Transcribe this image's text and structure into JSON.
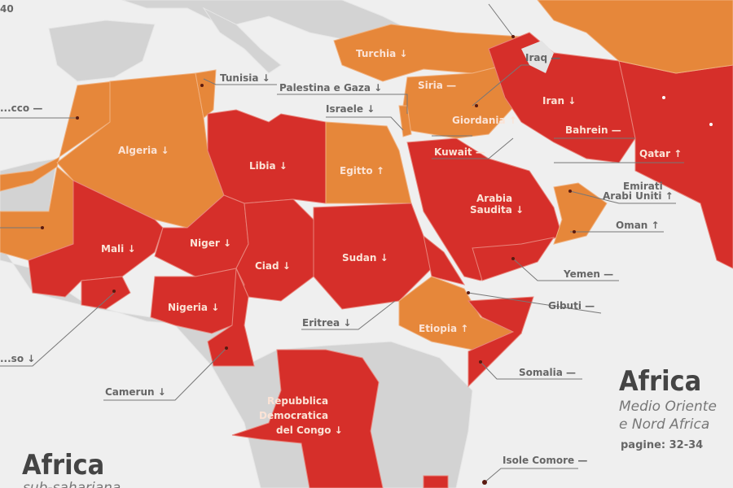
{
  "colors": {
    "worsening_region": "#d62f2a",
    "other_region": "#e6873a",
    "not_covered": "#d3d3d3",
    "sea": "#efefef"
  },
  "top_left_fragment": "40",
  "countries": {
    "marocco": {
      "label": "...cco",
      "trend": "—"
    },
    "tunisia": {
      "label": "Tunisia",
      "trend": "↓"
    },
    "palestina": {
      "label": "Palestina e Gaza",
      "trend": "↓"
    },
    "israele": {
      "label": "Israele",
      "trend": "↓"
    },
    "turchia": {
      "label": "Turchia",
      "trend": "↓"
    },
    "iraq": {
      "label": "Iraq",
      "trend": "—"
    },
    "siria": {
      "label": "Siria",
      "trend": "—"
    },
    "giordania": {
      "label": "Giordania",
      "trend": "↑"
    },
    "iran": {
      "label": "Iran",
      "trend": "↓"
    },
    "bahrein": {
      "label": "Bahrein",
      "trend": "—"
    },
    "kuwait": {
      "label": "Kuwait",
      "trend": "—"
    },
    "qatar": {
      "label": "Qatar",
      "trend": "↑"
    },
    "emirati": {
      "label1": "Emirati",
      "label2": "Arabi Uniti",
      "trend": "↑"
    },
    "oman": {
      "label": "Oman",
      "trend": "↑"
    },
    "arabia": {
      "label1": "Arabia",
      "label2": "Saudita",
      "trend": "↓"
    },
    "yemen": {
      "label": "Yemen",
      "trend": "—"
    },
    "algeria": {
      "label": "Algeria",
      "trend": "↓"
    },
    "libia": {
      "label": "Libia",
      "trend": "↓"
    },
    "egitto": {
      "label": "Egitto",
      "trend": "↑"
    },
    "mali": {
      "label": "Mali",
      "trend": "↓"
    },
    "niger": {
      "label": "Niger",
      "trend": "↓"
    },
    "ciad": {
      "label": "Ciad",
      "trend": "↓"
    },
    "sudan": {
      "label": "Sudan",
      "trend": "↓"
    },
    "nigeria": {
      "label": "Nigeria",
      "trend": "↓"
    },
    "burkina": {
      "label": "...so",
      "trend": "↓"
    },
    "camerun": {
      "label": "Camerun",
      "trend": "↓"
    },
    "eritrea": {
      "label": "Eritrea",
      "trend": "↓"
    },
    "etiopia": {
      "label": "Etiopia",
      "trend": "↑"
    },
    "gibuti": {
      "label": "Gibuti",
      "trend": "—"
    },
    "somalia": {
      "label": "Somalia",
      "trend": "—"
    },
    "rdc": {
      "label1": "Repubblica",
      "label2": "Democratica",
      "label3": "del Congo",
      "trend": "↓"
    },
    "comore": {
      "label": "Isole Comore",
      "trend": "—"
    }
  },
  "sections": {
    "mena": {
      "title": "Africa",
      "subtitle1": "Medio Oriente",
      "subtitle2": "e Nord Africa",
      "pages": "pagine: 32-34"
    },
    "subsahara": {
      "title": "Africa",
      "subtitle": "sub-sahariana"
    }
  }
}
